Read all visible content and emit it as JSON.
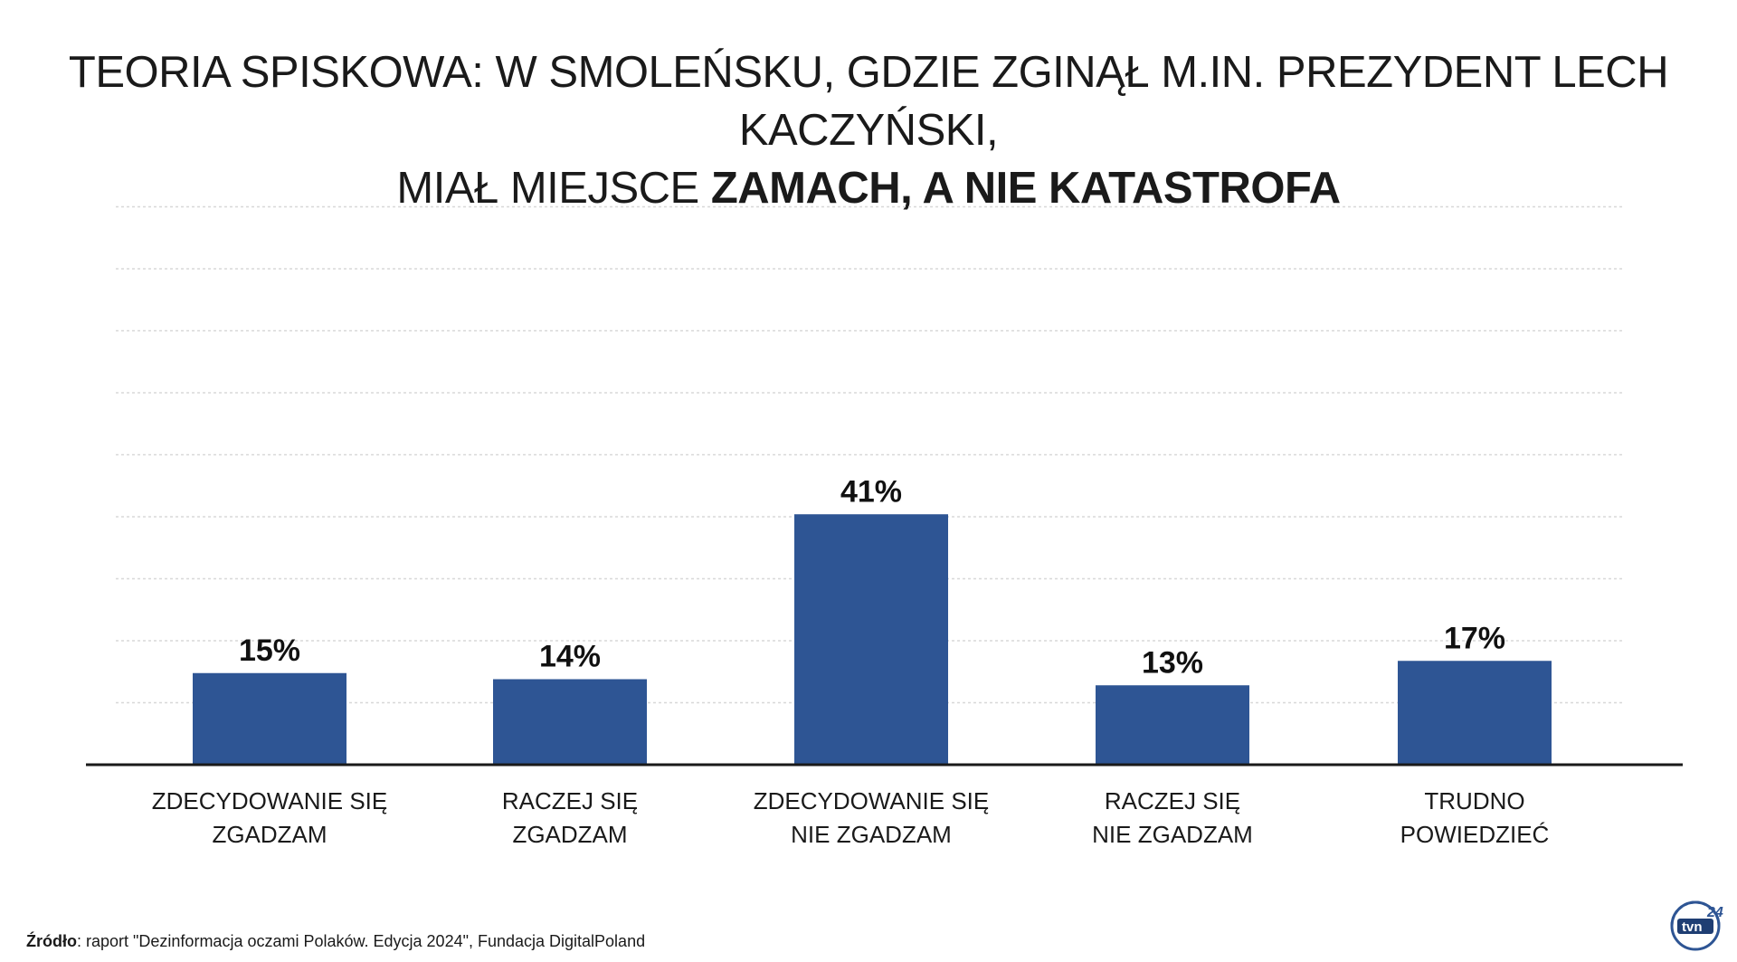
{
  "chart_data": {
    "type": "bar",
    "title_parts": {
      "line1": "TEORIA SPISKOWA: W SMOLEŃSKU, GDZIE ZGINĄŁ M.IN. PREZYDENT LECH KACZYŃSKI,",
      "line2_normal": "MIAŁ MIEJSCE ",
      "line2_bold": "ZAMACH, A NIE KATASTROFA"
    },
    "categories": [
      [
        "ZDECYDOWANIE SIĘ",
        "ZGADZAM"
      ],
      [
        "RACZEJ SIĘ",
        "ZGADZAM"
      ],
      [
        "ZDECYDOWANIE SIĘ",
        "NIE ZGADZAM"
      ],
      [
        "RACZEJ SIĘ",
        "NIE ZGADZAM"
      ],
      [
        "TRUDNO",
        "POWIEDZIEĆ"
      ]
    ],
    "values": [
      15,
      14,
      41,
      13,
      17
    ],
    "value_labels": [
      "15%",
      "14%",
      "41%",
      "13%",
      "17%"
    ],
    "ylim": [
      0,
      45
    ],
    "grid": true,
    "bar_color": "#2e5594",
    "grid_color": "#d8d8d8",
    "axis_color": "#1a1a1a"
  },
  "source": {
    "label": "Źródło",
    "text": ": raport \"Dezinformacja oczami Polaków. Edycja 2024\", Fundacja DigitalPoland"
  },
  "logo": {
    "icon": "tvn24-logo",
    "text": "tvn",
    "number": "24"
  }
}
